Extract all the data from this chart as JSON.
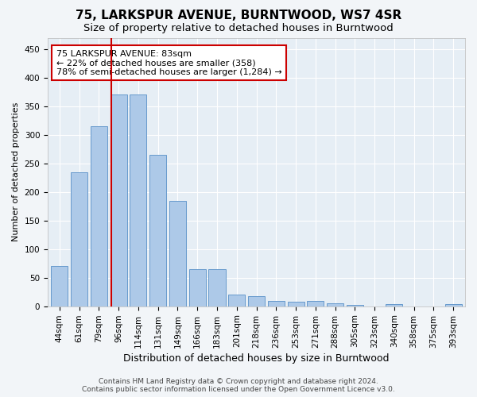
{
  "title1": "75, LARKSPUR AVENUE, BURNTWOOD, WS7 4SR",
  "title2": "Size of property relative to detached houses in Burntwood",
  "xlabel": "Distribution of detached houses by size in Burntwood",
  "ylabel": "Number of detached properties",
  "categories": [
    "44sqm",
    "61sqm",
    "79sqm",
    "96sqm",
    "114sqm",
    "131sqm",
    "149sqm",
    "166sqm",
    "183sqm",
    "201sqm",
    "218sqm",
    "236sqm",
    "253sqm",
    "271sqm",
    "288sqm",
    "305sqm",
    "323sqm",
    "340sqm",
    "358sqm",
    "375sqm",
    "393sqm"
  ],
  "values": [
    70,
    235,
    315,
    370,
    370,
    265,
    185,
    65,
    65,
    20,
    18,
    10,
    8,
    9,
    5,
    2,
    0,
    4,
    0,
    0,
    4
  ],
  "bar_color": "#adc9e8",
  "bar_edge_color": "#6699cc",
  "vline_x_index": 2.62,
  "vline_color": "#cc0000",
  "annotation_text": "75 LARKSPUR AVENUE: 83sqm\n← 22% of detached houses are smaller (358)\n78% of semi-detached houses are larger (1,284) →",
  "annotation_box_color": "white",
  "annotation_box_edge_color": "#cc0000",
  "ylim": [
    0,
    470
  ],
  "yticks": [
    0,
    50,
    100,
    150,
    200,
    250,
    300,
    350,
    400,
    450
  ],
  "footer1": "Contains HM Land Registry data © Crown copyright and database right 2024.",
  "footer2": "Contains public sector information licensed under the Open Government Licence v3.0.",
  "bg_color": "#f2f5f8",
  "plot_bg_color": "#e6eef5",
  "grid_color": "#ffffff",
  "title1_fontsize": 11,
  "title2_fontsize": 9.5,
  "annotation_fontsize": 8,
  "tick_fontsize": 7.5,
  "ylabel_fontsize": 8,
  "xlabel_fontsize": 9
}
